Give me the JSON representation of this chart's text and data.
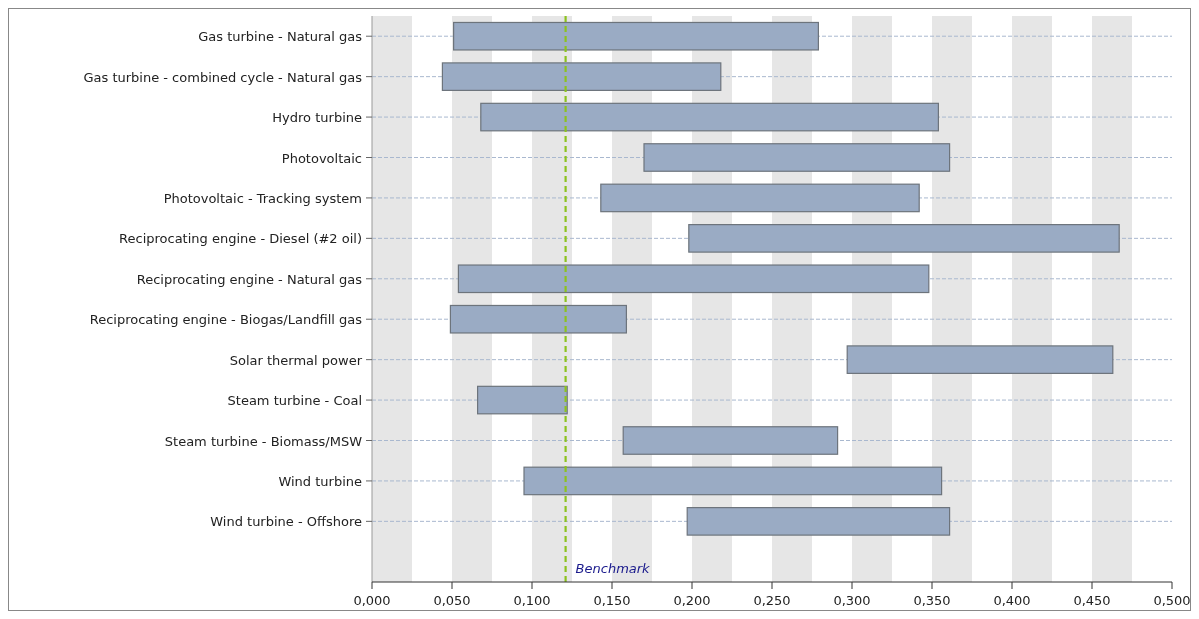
{
  "chart_data": {
    "type": "bar",
    "orientation": "horizontal",
    "categories": [
      "Gas turbine - Natural gas",
      "Gas turbine - combined cycle - Natural gas",
      "Hydro turbine",
      "Photovoltaic",
      "Photovoltaic - Tracking system",
      "Reciprocating engine - Diesel (#2 oil)",
      "Reciprocating engine - Natural gas",
      "Reciprocating engine - Biogas/Landfill gas",
      "Solar thermal power",
      "Steam turbine - Coal",
      "Steam turbine - Biomass/MSW",
      "Wind turbine",
      "Wind turbine - Offshore"
    ],
    "base": [
      0.051,
      0.044,
      0.068,
      0.17,
      0.143,
      0.198,
      0.054,
      0.049,
      0.297,
      0.066,
      0.157,
      0.095,
      0.197
    ],
    "values": [
      0.228,
      0.174,
      0.286,
      0.191,
      0.199,
      0.269,
      0.294,
      0.11,
      0.166,
      0.056,
      0.134,
      0.261,
      0.164
    ],
    "color": "#9aabc4",
    "xlim": [
      0,
      0.5
    ],
    "xticks": [
      {
        "value": 0,
        "label": "0,000"
      },
      {
        "value": 0.05,
        "label": "0,050"
      },
      {
        "value": 0.1,
        "label": "0,100"
      },
      {
        "value": 0.15,
        "label": "0,150"
      },
      {
        "value": 0.2,
        "label": "0,200"
      },
      {
        "value": 0.25,
        "label": "0,250"
      },
      {
        "value": 0.3,
        "label": "0,300"
      },
      {
        "value": 0.35,
        "label": "0,350"
      },
      {
        "value": 0.4,
        "label": "0,400"
      },
      {
        "value": 0.45,
        "label": "0,450"
      },
      {
        "value": 0.5,
        "label": "0,500"
      }
    ],
    "grid": "y",
    "bands": [
      {
        "axis": "x",
        "from": 0,
        "to": 0.025,
        "color": "#e6e6e6"
      },
      {
        "axis": "x",
        "from": 0.05,
        "to": 0.075,
        "color": "#e6e6e6"
      },
      {
        "axis": "x",
        "from": 0.1,
        "to": 0.125,
        "color": "#e6e6e6"
      },
      {
        "axis": "x",
        "from": 0.15,
        "to": 0.175,
        "color": "#e6e6e6"
      },
      {
        "axis": "x",
        "from": 0.2,
        "to": 0.225,
        "color": "#e6e6e6"
      },
      {
        "axis": "x",
        "from": 0.25,
        "to": 0.275,
        "color": "#e6e6e6"
      },
      {
        "axis": "x",
        "from": 0.3,
        "to": 0.325,
        "color": "#e6e6e6"
      },
      {
        "axis": "x",
        "from": 0.35,
        "to": 0.375,
        "color": "#e6e6e6"
      },
      {
        "axis": "x",
        "from": 0.4,
        "to": 0.425,
        "color": "#e6e6e6"
      },
      {
        "axis": "x",
        "from": 0.45,
        "to": 0.475,
        "color": "#e6e6e6"
      }
    ],
    "ref_lines": [
      {
        "axis": "x",
        "value": 0.121,
        "label": "Benchmark",
        "color": "#8cc21e",
        "line_style": "dashed"
      }
    ]
  }
}
